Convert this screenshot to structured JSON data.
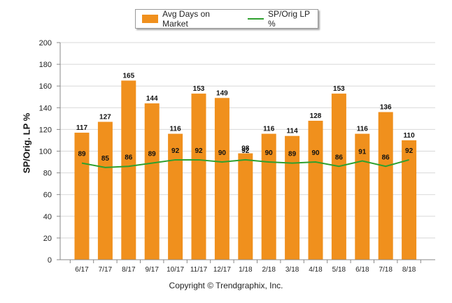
{
  "legend": {
    "bar_label": "Avg Days on Market",
    "line_label": "SP/Orig LP %",
    "placement": "top-center"
  },
  "copyright": "Copyright © Trendgraphix, Inc.",
  "colors": {
    "bar": "#f0901d",
    "line": "#2ea02e",
    "grid": "#d8d8d8",
    "axis": "#888888"
  },
  "chart_data": {
    "type": "bar",
    "title": "",
    "xlabel": "",
    "ylabel": "SP/Orig. LP %",
    "ylim": [
      0,
      200
    ],
    "yticks": [
      0,
      20,
      40,
      60,
      80,
      100,
      120,
      140,
      160,
      180,
      200
    ],
    "grid": true,
    "categories": [
      "6/17",
      "7/17",
      "8/17",
      "9/17",
      "10/17",
      "11/17",
      "12/17",
      "1/18",
      "2/18",
      "3/18",
      "4/18",
      "5/18",
      "6/18",
      "7/18",
      "8/18"
    ],
    "series": [
      {
        "name": "Avg Days on Market",
        "type": "bar",
        "values": [
          117,
          127,
          165,
          144,
          116,
          153,
          149,
          98,
          116,
          114,
          128,
          153,
          116,
          136,
          110
        ]
      },
      {
        "name": "SP/Orig LP %",
        "type": "line",
        "values": [
          89,
          85,
          86,
          89,
          92,
          92,
          90,
          92,
          90,
          89,
          90,
          86,
          91,
          86,
          92
        ]
      }
    ]
  }
}
